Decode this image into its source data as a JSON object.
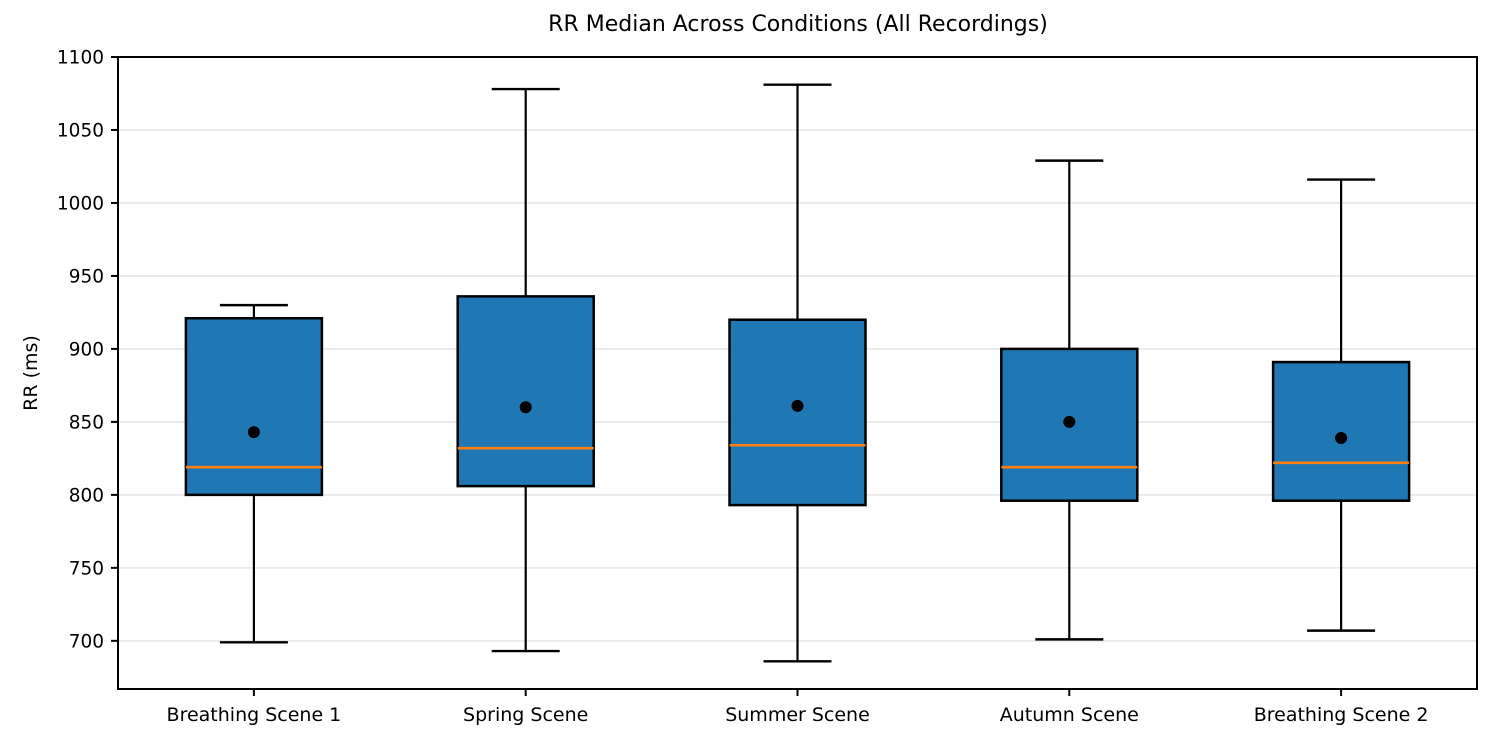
{
  "chart_data": {
    "type": "boxplot",
    "title": "RR Median Across Conditions (All Recordings)",
    "xlabel": "",
    "ylabel": "RR (ms)",
    "categories": [
      "Breathing Scene 1",
      "Spring Scene",
      "Summer Scene",
      "Autumn Scene",
      "Breathing Scene 2"
    ],
    "series": [
      {
        "name": "Breathing Scene 1",
        "whisker_low": 699,
        "q1": 800,
        "median": 819,
        "mean": 843,
        "q3": 921,
        "whisker_high": 930
      },
      {
        "name": "Spring Scene",
        "whisker_low": 693,
        "q1": 806,
        "median": 832,
        "mean": 860,
        "q3": 936,
        "whisker_high": 1078
      },
      {
        "name": "Summer Scene",
        "whisker_low": 686,
        "q1": 793,
        "median": 834,
        "mean": 861,
        "q3": 920,
        "whisker_high": 1081
      },
      {
        "name": "Autumn Scene",
        "whisker_low": 701,
        "q1": 796,
        "median": 819,
        "mean": 850,
        "q3": 900,
        "whisker_high": 1029
      },
      {
        "name": "Breathing Scene 2",
        "whisker_low": 707,
        "q1": 796,
        "median": 822,
        "mean": 839,
        "q3": 891,
        "whisker_high": 1016
      }
    ],
    "yticks": [
      700,
      750,
      800,
      850,
      900,
      950,
      1000,
      1050,
      1100
    ],
    "ylim": [
      667,
      1100
    ],
    "grid": "horizontal",
    "legend": "none",
    "colors": {
      "box_fill": "#1f77b4",
      "box_edge": "#000000",
      "median": "#ff7f0e",
      "mean_dot": "#000000",
      "whisker": "#000000",
      "grid": "#e9e9e9",
      "axis": "#000000",
      "background": "#ffffff"
    }
  }
}
